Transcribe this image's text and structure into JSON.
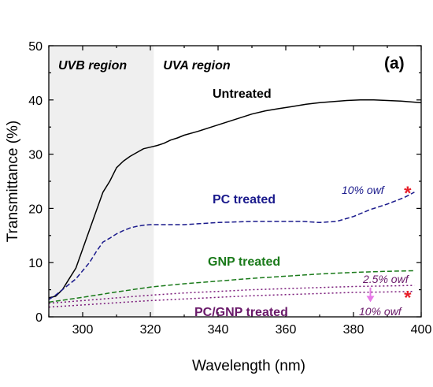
{
  "chart_data": {
    "type": "line",
    "panel_label": "(a)",
    "xlabel": "Wavelength (nm)",
    "ylabel": "Transmittance (%)",
    "xlim": [
      290,
      400
    ],
    "ylim": [
      0,
      50
    ],
    "xticks": [
      300,
      320,
      340,
      360,
      380,
      400
    ],
    "yticks": [
      0,
      10,
      20,
      30,
      40,
      50
    ],
    "regions": [
      {
        "label": "UVB region",
        "x_from": 290,
        "x_to": 321,
        "shaded": true
      },
      {
        "label": "UVA region",
        "x_from": 321,
        "x_to": 400,
        "shaded": false
      }
    ],
    "series": [
      {
        "name": "Untreated",
        "color": "#000000",
        "style": "solid",
        "x": [
          290,
          292,
          294,
          296,
          298,
          300,
          302,
          304,
          306,
          308,
          310,
          312,
          314,
          316,
          318,
          320,
          322,
          324,
          326,
          328,
          330,
          334,
          338,
          342,
          346,
          350,
          354,
          358,
          362,
          366,
          370,
          374,
          378,
          382,
          386,
          390,
          394,
          398,
          400
        ],
        "y": [
          3.5,
          3.8,
          5.0,
          7.0,
          9.0,
          12.5,
          16.0,
          19.5,
          23.0,
          25.0,
          27.5,
          28.7,
          29.6,
          30.3,
          31.0,
          31.3,
          31.6,
          32.0,
          32.6,
          33.0,
          33.5,
          34.2,
          35.0,
          35.8,
          36.6,
          37.4,
          38.0,
          38.4,
          38.8,
          39.2,
          39.5,
          39.7,
          39.9,
          40.0,
          40.0,
          39.9,
          39.8,
          39.6,
          39.5
        ]
      },
      {
        "name": "PC treated",
        "color": "#1a1a8c",
        "style": "dashed",
        "concentration": "10% owf",
        "x": [
          290,
          292,
          294,
          296,
          298,
          300,
          302,
          304,
          306,
          308,
          310,
          312,
          314,
          316,
          318,
          320,
          324,
          330,
          340,
          350,
          360,
          365,
          370,
          375,
          380,
          385,
          390,
          395,
          398
        ],
        "y": [
          3.2,
          4.0,
          5.0,
          6.0,
          7.0,
          8.5,
          10.0,
          12.0,
          13.8,
          14.5,
          15.3,
          15.9,
          16.4,
          16.7,
          16.9,
          17.0,
          17.0,
          17.0,
          17.4,
          17.6,
          17.6,
          17.6,
          17.4,
          17.6,
          18.5,
          19.8,
          20.8,
          22.0,
          23.0
        ]
      },
      {
        "name": "GNP treated",
        "color": "#1a7a1a",
        "style": "dashed",
        "x": [
          290,
          300,
          310,
          320,
          330,
          340,
          350,
          360,
          370,
          380,
          390,
          398
        ],
        "y": [
          2.7,
          3.6,
          4.6,
          5.5,
          6.1,
          6.6,
          7.1,
          7.5,
          7.9,
          8.2,
          8.4,
          8.5
        ]
      },
      {
        "name": "PC/GNP treated 2.5% owf",
        "color": "#7a1a7a",
        "style": "dotted",
        "concentration": "2.5% owf",
        "x": [
          290,
          300,
          310,
          320,
          330,
          340,
          350,
          360,
          370,
          380,
          390,
          398
        ],
        "y": [
          2.5,
          3.0,
          3.5,
          4.0,
          4.4,
          4.7,
          5.0,
          5.2,
          5.4,
          5.6,
          5.7,
          5.8
        ]
      },
      {
        "name": "PC/GNP treated 10% owf",
        "color": "#7a1a7a",
        "style": "dotted",
        "concentration": "10% owf",
        "x": [
          290,
          300,
          310,
          320,
          330,
          340,
          350,
          360,
          370,
          380,
          390,
          398
        ],
        "y": [
          1.8,
          2.2,
          2.6,
          3.0,
          3.3,
          3.6,
          3.9,
          4.1,
          4.3,
          4.5,
          4.6,
          4.7
        ]
      }
    ],
    "labels": {
      "untreated": "Untreated",
      "pc": "PC treated",
      "gnp": "GNP treated",
      "pcgnp": "PC/GNP treated",
      "pc_conc": "10% owf",
      "pcgnp_conc_low": "2.5% owf",
      "pcgnp_conc_high": "10% owf"
    },
    "markers": [
      {
        "name": "pc-asterisk",
        "symbol": "*",
        "x": 396,
        "y": 23,
        "color": "#e8202a"
      },
      {
        "name": "pcgnp-asterisk",
        "symbol": "*",
        "x": 396,
        "y": 3.7,
        "color": "#e8202a"
      }
    ],
    "arrow": {
      "from_y": 5.4,
      "to_y": 2.7,
      "x": 385,
      "color": "#e87ae8"
    }
  }
}
